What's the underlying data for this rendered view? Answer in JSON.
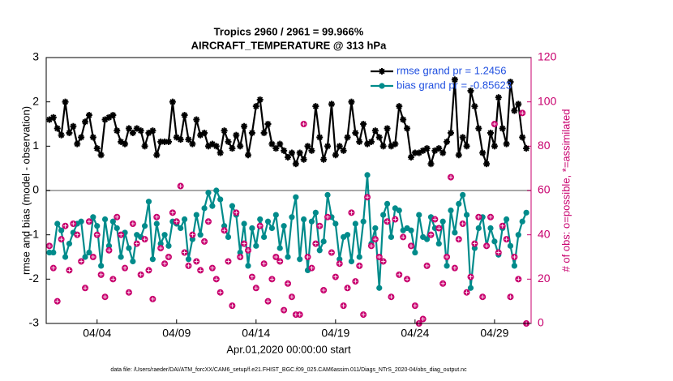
{
  "chart_data": {
    "type": "line",
    "title": "Tropics 2960 / 2961 = 99.966%",
    "subtitle": "AIRCRAFT_TEMPERATURE @ 313 hPa",
    "x_label": "Apr.01,2020 00:00:00 start",
    "y_label": "rmse and bias (model - observation)",
    "y2_label": "# of obs: o=possible, *=assimilated",
    "footnote": "data file: /Users/raeder/DAI/ATM_forcXX/CAM6_setup/f.e21.FHIST_BGC.f09_025.CAM6assim.011/Diags_NTrS_2020-04/obs_diag_output.nc",
    "xlim": [
      -0.2,
      30.3
    ],
    "xticks": [
      {
        "value": 3,
        "label": "04/04"
      },
      {
        "value": 8,
        "label": "04/09"
      },
      {
        "value": 13,
        "label": "04/14"
      },
      {
        "value": 18,
        "label": "04/19"
      },
      {
        "value": 23,
        "label": "04/24"
      },
      {
        "value": 28,
        "label": "04/29"
      }
    ],
    "ylim": [
      -3,
      3
    ],
    "yticks": [
      -3,
      -2,
      -1,
      0,
      1,
      2,
      3
    ],
    "y2lim": [
      0,
      120
    ],
    "y2ticks": [
      0,
      20,
      40,
      60,
      80,
      100,
      120
    ],
    "y2_color": "#c8006e",
    "zero_line_color": "#aaaaaa",
    "legend_position": "upper right",
    "legend_text_color": "#1f4fe0",
    "x": [
      0,
      0.25,
      0.5,
      0.75,
      1,
      1.25,
      1.5,
      1.75,
      2,
      2.25,
      2.5,
      2.75,
      3,
      3.25,
      3.5,
      3.75,
      4,
      4.25,
      4.5,
      4.75,
      5,
      5.25,
      5.5,
      5.75,
      6,
      6.25,
      6.5,
      6.75,
      7,
      7.25,
      7.5,
      7.75,
      8,
      8.25,
      8.5,
      8.75,
      9,
      9.25,
      9.5,
      9.75,
      10,
      10.25,
      10.5,
      10.75,
      11,
      11.25,
      11.5,
      11.75,
      12,
      12.25,
      12.5,
      12.75,
      13,
      13.25,
      13.5,
      13.75,
      14,
      14.25,
      14.5,
      14.75,
      15,
      15.25,
      15.5,
      15.75,
      16,
      16.25,
      16.5,
      16.75,
      17,
      17.25,
      17.5,
      17.75,
      18,
      18.25,
      18.5,
      18.75,
      19,
      19.25,
      19.5,
      19.75,
      20,
      20.25,
      20.5,
      20.75,
      21,
      21.25,
      21.5,
      21.75,
      22,
      22.25,
      22.5,
      22.75,
      23,
      23.25,
      23.5,
      23.75,
      24,
      24.25,
      24.5,
      24.75,
      25,
      25.25,
      25.5,
      25.75,
      26,
      26.25,
      26.5,
      26.75,
      27,
      27.25,
      27.5,
      27.75,
      28,
      28.25,
      28.5,
      28.75,
      29,
      29.25,
      29.5,
      29.75,
      30
    ],
    "series": [
      {
        "name": "rmse grand pr = 1.2456",
        "color": "#000000",
        "marker": "star",
        "values": [
          1.6,
          1.65,
          1.4,
          1.25,
          2.0,
          1.3,
          1.45,
          1.05,
          1.2,
          1.55,
          1.7,
          1.2,
          0.95,
          0.8,
          1.6,
          1.65,
          1.7,
          1.35,
          1.1,
          1.05,
          1.4,
          1.3,
          1.4,
          1.35,
          1.0,
          1.3,
          1.35,
          0.8,
          1.1,
          1.1,
          1.1,
          2.0,
          1.2,
          1.15,
          1.7,
          1.15,
          1.05,
          1.6,
          1.25,
          1.3,
          1.0,
          1.05,
          1.0,
          0.85,
          1.35,
          1.1,
          0.95,
          1.25,
          1.0,
          1.45,
          0.8,
          1.3,
          1.9,
          2.05,
          1.3,
          1.5,
          1.05,
          0.95,
          1.05,
          0.9,
          0.75,
          0.85,
          0.6,
          0.85,
          0.7,
          1.0,
          0.9,
          1.9,
          1.2,
          0.7,
          1.0,
          1.95,
          0.8,
          1.0,
          0.9,
          1.2,
          2.0,
          1.3,
          1.1,
          1.5,
          1.05,
          1.1,
          1.35,
          1.2,
          1.0,
          1.4,
          1.0,
          1.05,
          1.9,
          1.6,
          1.4,
          0.75,
          0.85,
          0.85,
          0.9,
          0.95,
          0.6,
          0.9,
          0.95,
          0.85,
          1.1,
          1.3,
          2.5,
          0.8,
          1.2,
          1.0,
          2.25,
          1.9,
          1.4,
          0.85,
          0.6,
          1.3,
          1.0,
          2.1,
          1.4,
          1.05,
          2.45,
          1.8,
          1.95,
          1.2,
          0.95
        ]
      },
      {
        "name": "bias grand pr = -0.85623",
        "color": "#008b8b",
        "marker": "circle",
        "values": [
          -1.4,
          -1.4,
          -0.75,
          -0.9,
          -1.5,
          -1.2,
          -0.95,
          -0.75,
          -0.7,
          -1.5,
          -1.4,
          -0.6,
          -0.8,
          -1.7,
          -0.65,
          -1.25,
          -0.7,
          -0.85,
          -1.5,
          -0.95,
          -1.3,
          -1.6,
          -1.0,
          -1.05,
          -0.8,
          -0.25,
          -1.55,
          -0.75,
          -1.2,
          -1.0,
          -1.25,
          -0.7,
          -0.75,
          -0.85,
          -0.65,
          -1.55,
          -1.1,
          -0.55,
          -1.0,
          -0.4,
          -0.05,
          -0.35,
          0.0,
          -0.2,
          -0.8,
          -1.05,
          -0.35,
          -0.55,
          -1.4,
          -0.75,
          -1.7,
          -0.85,
          -1.25,
          -0.65,
          -1.05,
          -0.7,
          -0.85,
          -0.55,
          -1.3,
          -0.8,
          -1.5,
          -0.6,
          -0.15,
          -1.55,
          -0.65,
          -1.8,
          -0.7,
          -0.5,
          -1.35,
          -1.15,
          -0.1,
          -0.6,
          -0.75,
          -1.55,
          -1.05,
          -1.0,
          -1.6,
          -0.75,
          -1.5,
          -0.7,
          0.35,
          -1.2,
          -0.85,
          -2.2,
          -0.55,
          -0.3,
          -1.05,
          -0.4,
          -0.45,
          -0.9,
          -0.85,
          -0.9,
          -1.4,
          -0.55,
          -1.05,
          -1.1,
          -0.6,
          -0.85,
          -1.2,
          -0.7,
          -1.7,
          -0.45,
          -0.95,
          -0.3,
          -0.1,
          -0.55,
          -2.2,
          -1.3,
          -0.85,
          -0.6,
          -1.25,
          -0.85,
          -1.15,
          -1.45,
          -0.85,
          -0.65,
          -1.25,
          -1.7,
          -1.0,
          -0.7,
          -0.5
        ]
      },
      {
        "color": "#c8006e",
        "marker": "obs",
        "axis": "y2",
        "values": [
          35,
          25,
          10,
          38,
          44,
          24,
          45,
          40,
          28,
          16,
          46,
          30,
          40,
          22,
          12,
          33,
          20,
          48,
          40,
          25,
          14,
          45,
          36,
          22,
          38,
          24,
          11,
          48,
          34,
          27,
          30,
          50,
          46,
          62,
          32,
          26,
          40,
          28,
          24,
          37,
          46,
          25,
          20,
          14,
          42,
          28,
          8,
          50,
          30,
          36,
          33,
          21,
          16,
          44,
          27,
          10,
          20,
          30,
          28,
          6,
          18,
          12,
          4,
          4,
          90,
          30,
          25,
          36,
          44,
          15,
          48,
          32,
          21,
          27,
          8,
          16,
          50,
          19,
          26,
          4,
          57,
          35,
          38,
          30,
          28,
          46,
          12,
          47,
          22,
          39,
          20,
          35,
          8,
          0,
          2,
          26,
          40,
          47,
          43,
          18,
          30,
          66,
          25,
          38,
          45,
          14,
          21,
          36,
          48,
          12,
          35,
          48,
          90,
          32,
          44,
          38,
          12,
          30,
          20,
          95,
          0
        ]
      }
    ]
  }
}
